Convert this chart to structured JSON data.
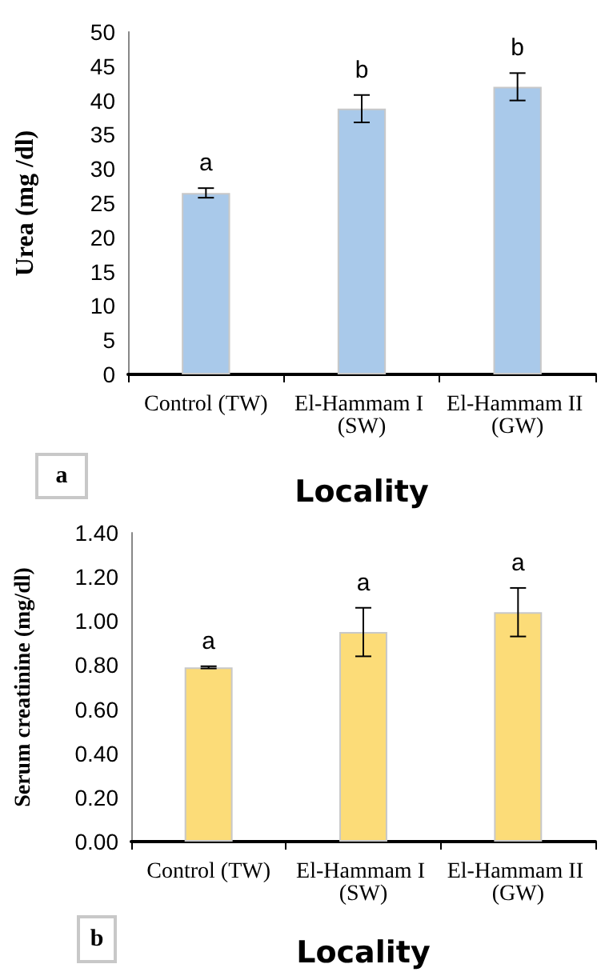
{
  "chart_data": [
    {
      "type": "bar",
      "ylabel": "Urea (mg /dl)",
      "xlabel": "Locality",
      "categories": [
        "Control (TW)",
        "El-Hammam I (SW)",
        "El-Hammam II (GW)"
      ],
      "values": [
        26.5,
        38.8,
        42
      ],
      "errors": [
        0.7,
        2,
        2
      ],
      "color": "#a9c9ea",
      "ylim": [
        0,
        50
      ],
      "yticks": [
        0,
        5,
        10,
        15,
        20,
        25,
        30,
        35,
        40,
        45,
        50
      ],
      "grid": false,
      "annotations": [
        "a",
        "a",
        "b",
        "b"
      ]
    },
    {
      "type": "bar",
      "ylabel": "Serum creatinine (mg/dl)",
      "xlabel": "Locality",
      "categories": [
        "Control (TW)",
        "El-Hammam I (SW)",
        "El-Hammam II (GW)"
      ],
      "values": [
        0.79,
        0.95,
        1.04
      ],
      "errors": [
        0.005,
        0.11,
        0.11
      ],
      "color": "#fcdc78",
      "ylim": [
        0,
        1.4
      ],
      "yticks": [
        {
          "value": 0,
          "label": "0.00"
        },
        {
          "value": 0.2,
          "label": "0.20"
        },
        {
          "value": 0.4,
          "label": "0.40"
        },
        {
          "value": 0.6,
          "label": "0.60"
        },
        {
          "value": 0.8,
          "label": "0.80"
        },
        {
          "value": 1,
          "label": "1.00"
        },
        {
          "value": 1.2,
          "label": "1.20"
        },
        {
          "value": 1.4,
          "label": "1.40"
        }
      ],
      "grid": false,
      "annotations": [
        "b",
        "a",
        "a",
        "a"
      ]
    }
  ]
}
